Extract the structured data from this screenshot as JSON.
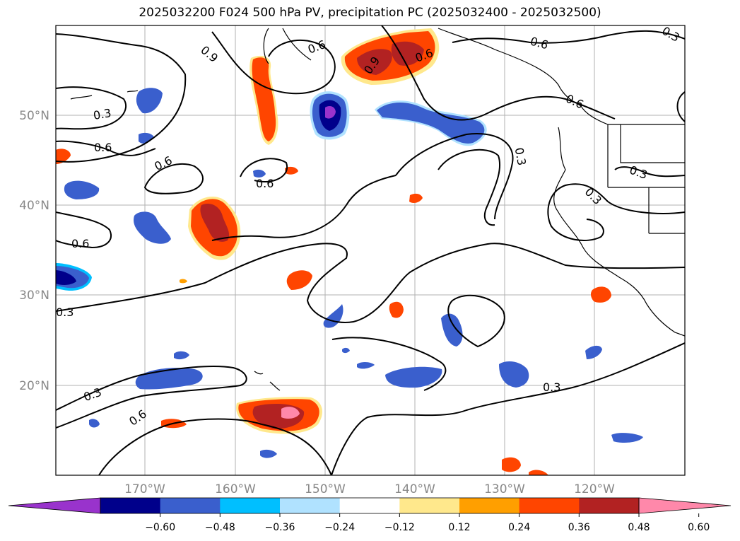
{
  "title": "2025032200 F024 500 hPa PV, precipitation PC (2025032400 - 2025032500)",
  "map": {
    "lat_labels": [
      "50°N",
      "40°N",
      "30°N",
      "20°N"
    ],
    "lon_labels": [
      "170°W",
      "160°W",
      "150°W",
      "140°W",
      "130°W",
      "120°W"
    ],
    "contour_labels": [
      "0.9",
      "0.6",
      "0.6",
      "0.3",
      "0.6",
      "0.9",
      "0.6",
      "0.3",
      "0.3",
      "0.6",
      "0.6",
      "0.6",
      "0.3",
      "0.3",
      "0.6",
      "0.3",
      "0.3",
      "0.6",
      "0.3"
    ]
  },
  "colorbar": {
    "tick_labels": [
      "−0.60",
      "−0.48",
      "−0.36",
      "−0.24",
      "−0.12",
      "0.12",
      "0.24",
      "0.36",
      "0.48",
      "0.60"
    ],
    "colors": [
      "#9933cc",
      "#00008b",
      "#3a5fcd",
      "#00bfff",
      "#b0e2ff",
      "#ffffff",
      "#ffe88c",
      "#ff9f00",
      "#ff4500",
      "#b22222",
      "#ff88aa"
    ]
  }
}
